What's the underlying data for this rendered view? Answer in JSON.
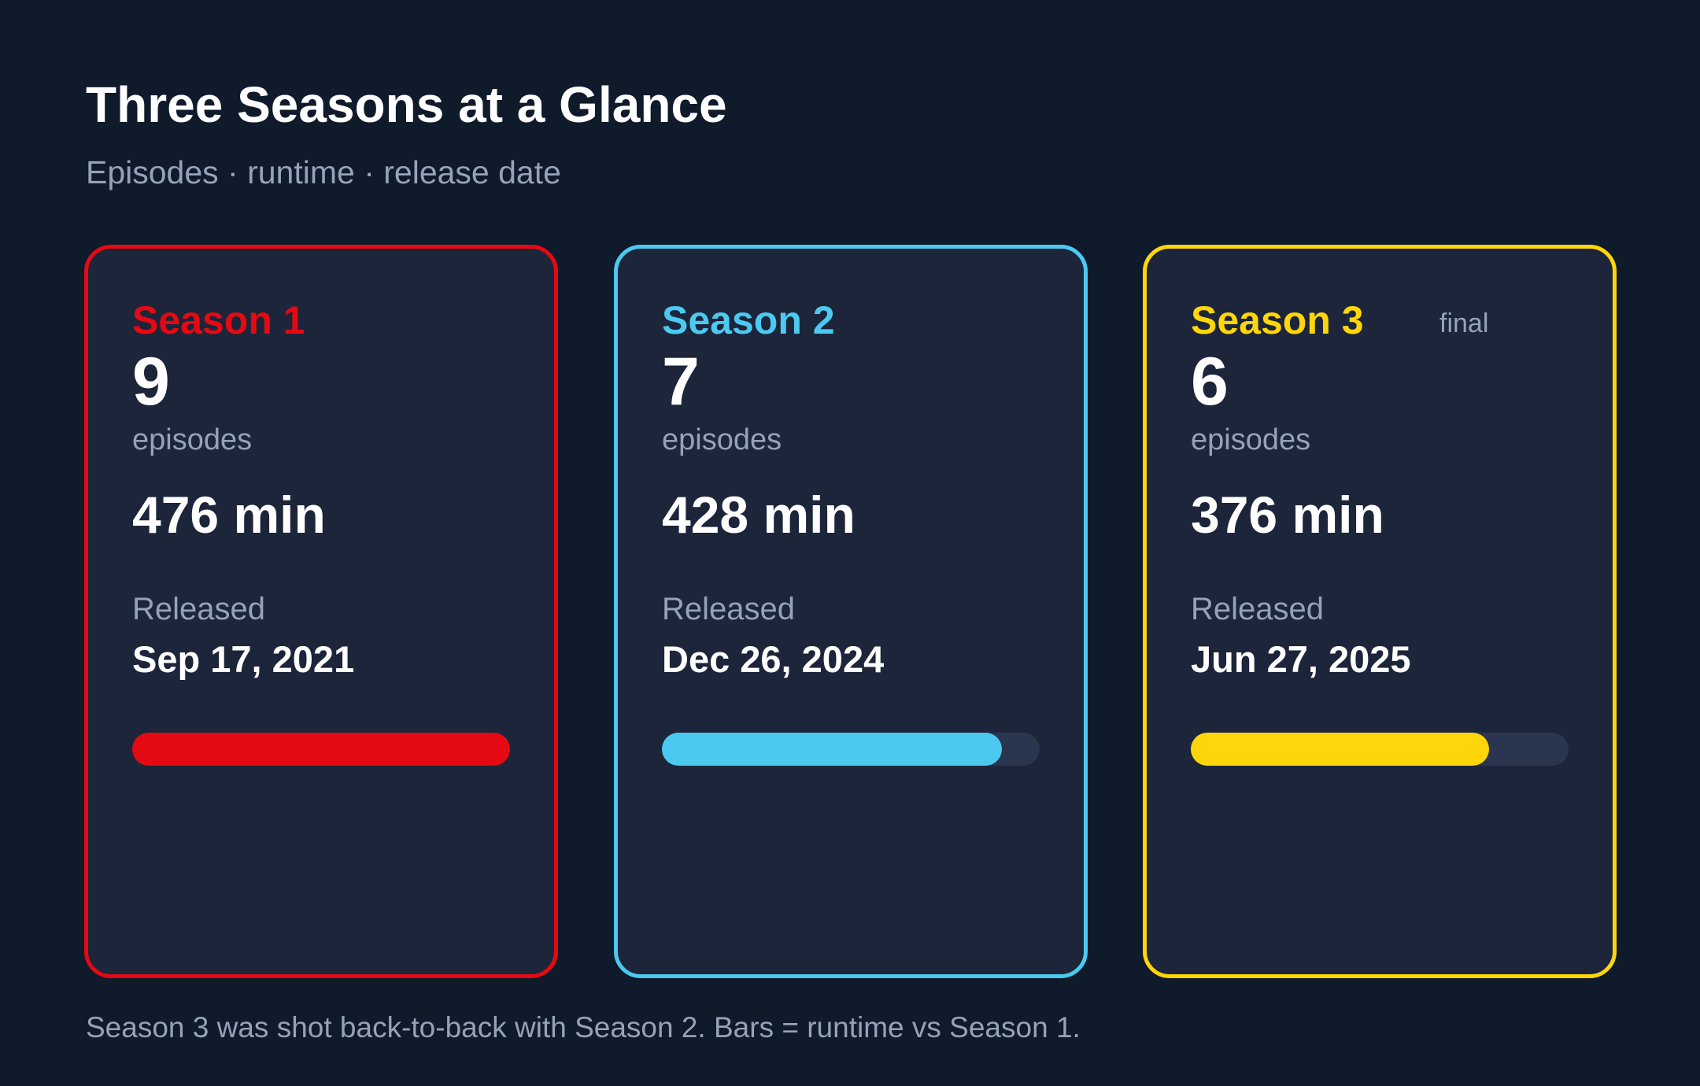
{
  "header": {
    "title": "Three Seasons at a Glance",
    "subtitle": "Episodes · runtime · release date"
  },
  "cards": [
    {
      "season": "Season 1",
      "color": "#e50914",
      "episodes": 9,
      "episodes_label": "episodes",
      "runtime": 476,
      "runtime_label": "476 min",
      "released_label": "Released",
      "date": "Sep 17, 2021"
    },
    {
      "season": "Season 2",
      "color": "#4cc9f0",
      "episodes": 7,
      "episodes_label": "episodes",
      "runtime": 428,
      "runtime_label": "428 min",
      "released_label": "Released",
      "date": "Dec 26, 2024"
    },
    {
      "season": "Season 3",
      "color": "#ffd60a",
      "badge": "final",
      "episodes": 6,
      "episodes_label": "episodes",
      "runtime": 376,
      "runtime_label": "376 min",
      "released_label": "Released",
      "date": "Jun 27, 2025"
    }
  ],
  "footnote": "Season 3 was shot back-to-back with Season 2. Bars = runtime vs Season 1."
}
